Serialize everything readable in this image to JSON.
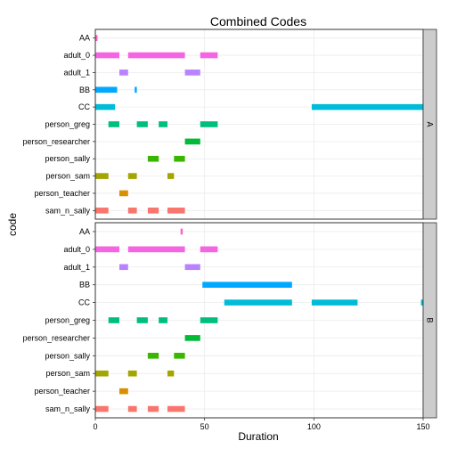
{
  "chart_data": {
    "type": "bar",
    "subtype": "gantt-faceted",
    "title": "Combined Codes",
    "xlabel": "Duration",
    "ylabel": "code",
    "xlim": [
      0,
      150
    ],
    "x_ticks": [
      0,
      50,
      100,
      150
    ],
    "grid": true,
    "legend": "none",
    "codes": [
      "AA",
      "adult_0",
      "adult_1",
      "BB",
      "CC",
      "person_greg",
      "person_researcher",
      "person_sally",
      "person_sam",
      "person_teacher",
      "sam_n_sally"
    ],
    "colors": {
      "AA": "#FF61C3",
      "adult_0": "#F564E3",
      "adult_1": "#B983FF",
      "BB": "#00A9FF",
      "CC": "#00BCD8",
      "person_greg": "#00BF7D",
      "person_researcher": "#00BA38",
      "person_sally": "#39B600",
      "person_sam": "#A3A500",
      "person_teacher": "#D89000",
      "sam_n_sally": "#F8766D"
    },
    "facets": [
      {
        "label": "A",
        "spans": {
          "AA": [
            [
              0,
              1
            ]
          ],
          "adult_0": [
            [
              0,
              11
            ],
            [
              15,
              41
            ],
            [
              48,
              56
            ]
          ],
          "adult_1": [
            [
              11,
              15
            ],
            [
              41,
              48
            ]
          ],
          "BB": [
            [
              0,
              10
            ],
            [
              18,
              19
            ]
          ],
          "CC": [
            [
              0,
              9
            ],
            [
              99,
              150
            ]
          ],
          "person_greg": [
            [
              6,
              11
            ],
            [
              19,
              24
            ],
            [
              29,
              33
            ],
            [
              48,
              56
            ]
          ],
          "person_researcher": [
            [
              41,
              48
            ]
          ],
          "person_sally": [
            [
              24,
              29
            ],
            [
              36,
              41
            ]
          ],
          "person_sam": [
            [
              0,
              6
            ],
            [
              15,
              19
            ],
            [
              33,
              36
            ]
          ],
          "person_teacher": [
            [
              11,
              15
            ]
          ],
          "sam_n_sally": [
            [
              0,
              6
            ],
            [
              15,
              19
            ],
            [
              24,
              29
            ],
            [
              33,
              41
            ]
          ]
        }
      },
      {
        "label": "B",
        "spans": {
          "AA": [
            [
              39,
              40
            ]
          ],
          "adult_0": [
            [
              0,
              11
            ],
            [
              15,
              41
            ],
            [
              48,
              56
            ]
          ],
          "adult_1": [
            [
              11,
              15
            ],
            [
              41,
              48
            ]
          ],
          "BB": [
            [
              49,
              90
            ]
          ],
          "CC": [
            [
              59,
              90
            ],
            [
              99,
              120
            ],
            [
              149,
              150
            ]
          ],
          "person_greg": [
            [
              6,
              11
            ],
            [
              19,
              24
            ],
            [
              29,
              33
            ],
            [
              48,
              56
            ]
          ],
          "person_researcher": [
            [
              41,
              48
            ]
          ],
          "person_sally": [
            [
              24,
              29
            ],
            [
              36,
              41
            ]
          ],
          "person_sam": [
            [
              0,
              6
            ],
            [
              15,
              19
            ],
            [
              33,
              36
            ]
          ],
          "person_teacher": [
            [
              11,
              15
            ]
          ],
          "sam_n_sally": [
            [
              0,
              6
            ],
            [
              15,
              19
            ],
            [
              24,
              29
            ],
            [
              33,
              41
            ]
          ]
        }
      }
    ]
  }
}
